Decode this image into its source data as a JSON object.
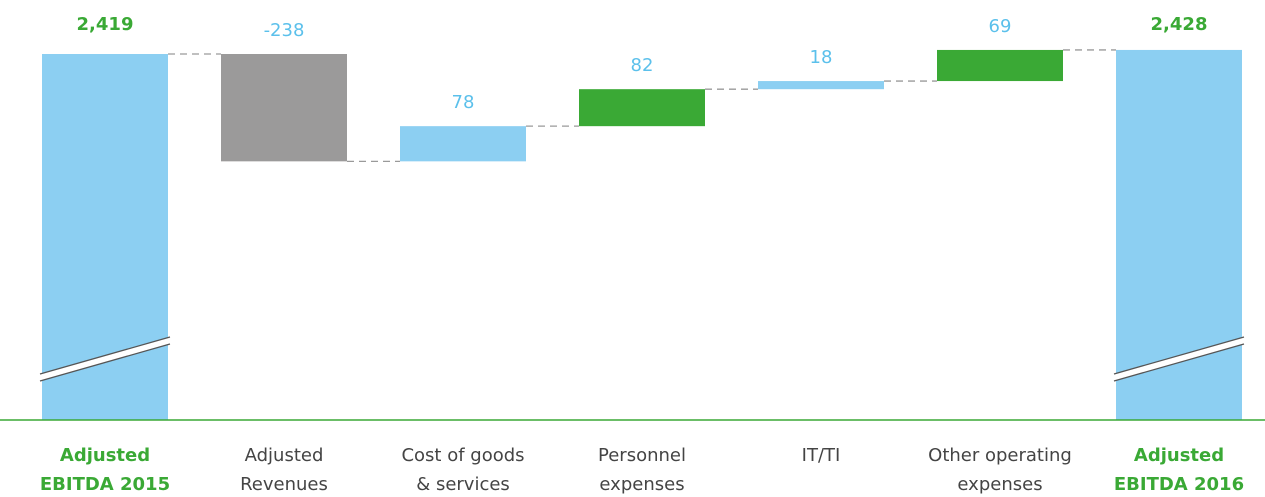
{
  "chart_data": {
    "type": "bar",
    "subtype": "waterfall",
    "categories": [
      [
        "Adjusted",
        "EBITDA 2015"
      ],
      [
        "Adjusted",
        "Revenues"
      ],
      [
        "Cost of goods",
        "& services"
      ],
      [
        "Personnel",
        "expenses"
      ],
      [
        "IT/TI"
      ],
      [
        "Other operating",
        "expenses"
      ],
      [
        "Adjusted",
        "EBITDA 2016"
      ]
    ],
    "values": [
      2419,
      -238,
      78,
      82,
      18,
      69,
      2428
    ],
    "value_labels": [
      "2,419",
      "-238",
      "78",
      "82",
      "18",
      "69",
      "2,428"
    ],
    "kinds": [
      "total",
      "decrease",
      "increase",
      "increase",
      "increase",
      "increase",
      "total"
    ],
    "colors": {
      "total": "#8ccff2",
      "decrease": "#9b9a9a",
      "light_bar": "#8ccff2",
      "green_bar": "#3aa935",
      "value_label": "#5bc0eb",
      "total_label": "#3aa935",
      "axis": "#3aa935"
    },
    "bar_colors": [
      "#8ccff2",
      "#9b9a9a",
      "#8ccff2",
      "#3aa935",
      "#8ccff2",
      "#3aa935",
      "#8ccff2"
    ],
    "y_axis_broken": true,
    "grid": false,
    "legend": "none"
  }
}
